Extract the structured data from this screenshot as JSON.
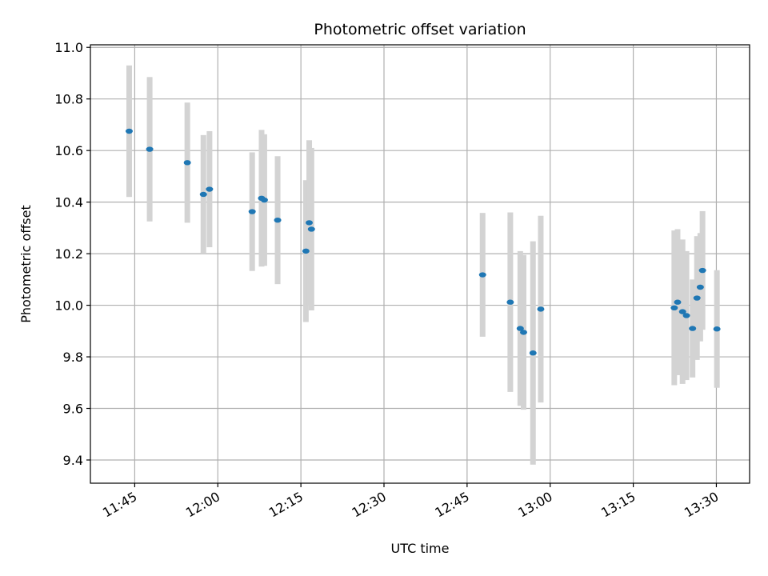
{
  "chart_data": {
    "type": "scatter",
    "title": "Photometric offset variation",
    "xlabel": "UTC time",
    "ylabel": "Photometric offset",
    "xlim": [
      "11:37",
      "13:36"
    ],
    "ylim": [
      9.31,
      11.01
    ],
    "x_ticks": [
      "11:45",
      "12:00",
      "12:15",
      "12:30",
      "12:45",
      "13:00",
      "13:15",
      "13:30"
    ],
    "y_ticks": [
      "9.4",
      "9.6",
      "9.8",
      "10.0",
      "10.2",
      "10.4",
      "10.6",
      "10.8",
      "11.0"
    ],
    "grid": true,
    "marker_color": "#1f77b4",
    "errorbar_color": "#d3d3d3",
    "points": [
      {
        "t": "11:44:00",
        "y": 10.675,
        "err": 0.255
      },
      {
        "t": "11:47:42",
        "y": 10.605,
        "err": 0.28
      },
      {
        "t": "11:54:30",
        "y": 10.553,
        "err": 0.233
      },
      {
        "t": "11:57:24",
        "y": 10.43,
        "err": 0.23
      },
      {
        "t": "11:58:30",
        "y": 10.45,
        "err": 0.225
      },
      {
        "t": "12:06:12",
        "y": 10.363,
        "err": 0.23
      },
      {
        "t": "12:07:54",
        "y": 10.415,
        "err": 0.265
      },
      {
        "t": "12:08:24",
        "y": 10.408,
        "err": 0.255
      },
      {
        "t": "12:10:48",
        "y": 10.33,
        "err": 0.248
      },
      {
        "t": "12:15:54",
        "y": 10.21,
        "err": 0.275
      },
      {
        "t": "12:16:30",
        "y": 10.32,
        "err": 0.32
      },
      {
        "t": "12:16:54",
        "y": 10.295,
        "err": 0.315
      },
      {
        "t": "12:47:48",
        "y": 10.118,
        "err": 0.24
      },
      {
        "t": "12:52:48",
        "y": 10.012,
        "err": 0.348
      },
      {
        "t": "12:54:36",
        "y": 9.91,
        "err": 0.3
      },
      {
        "t": "12:55:12",
        "y": 9.895,
        "err": 0.3
      },
      {
        "t": "12:56:54",
        "y": 9.815,
        "err": 0.433
      },
      {
        "t": "12:58:18",
        "y": 9.985,
        "err": 0.362
      },
      {
        "t": "13:22:24",
        "y": 9.99,
        "err": 0.3
      },
      {
        "t": "13:23:00",
        "y": 10.012,
        "err": 0.283
      },
      {
        "t": "13:23:54",
        "y": 9.975,
        "err": 0.28
      },
      {
        "t": "13:24:36",
        "y": 9.96,
        "err": 0.25
      },
      {
        "t": "13:25:42",
        "y": 9.91,
        "err": 0.19
      },
      {
        "t": "13:26:30",
        "y": 10.028,
        "err": 0.24
      },
      {
        "t": "13:27:06",
        "y": 10.07,
        "err": 0.21
      },
      {
        "t": "13:27:30",
        "y": 10.135,
        "err": 0.23
      },
      {
        "t": "13:30:06",
        "y": 9.908,
        "err": 0.228
      }
    ]
  }
}
